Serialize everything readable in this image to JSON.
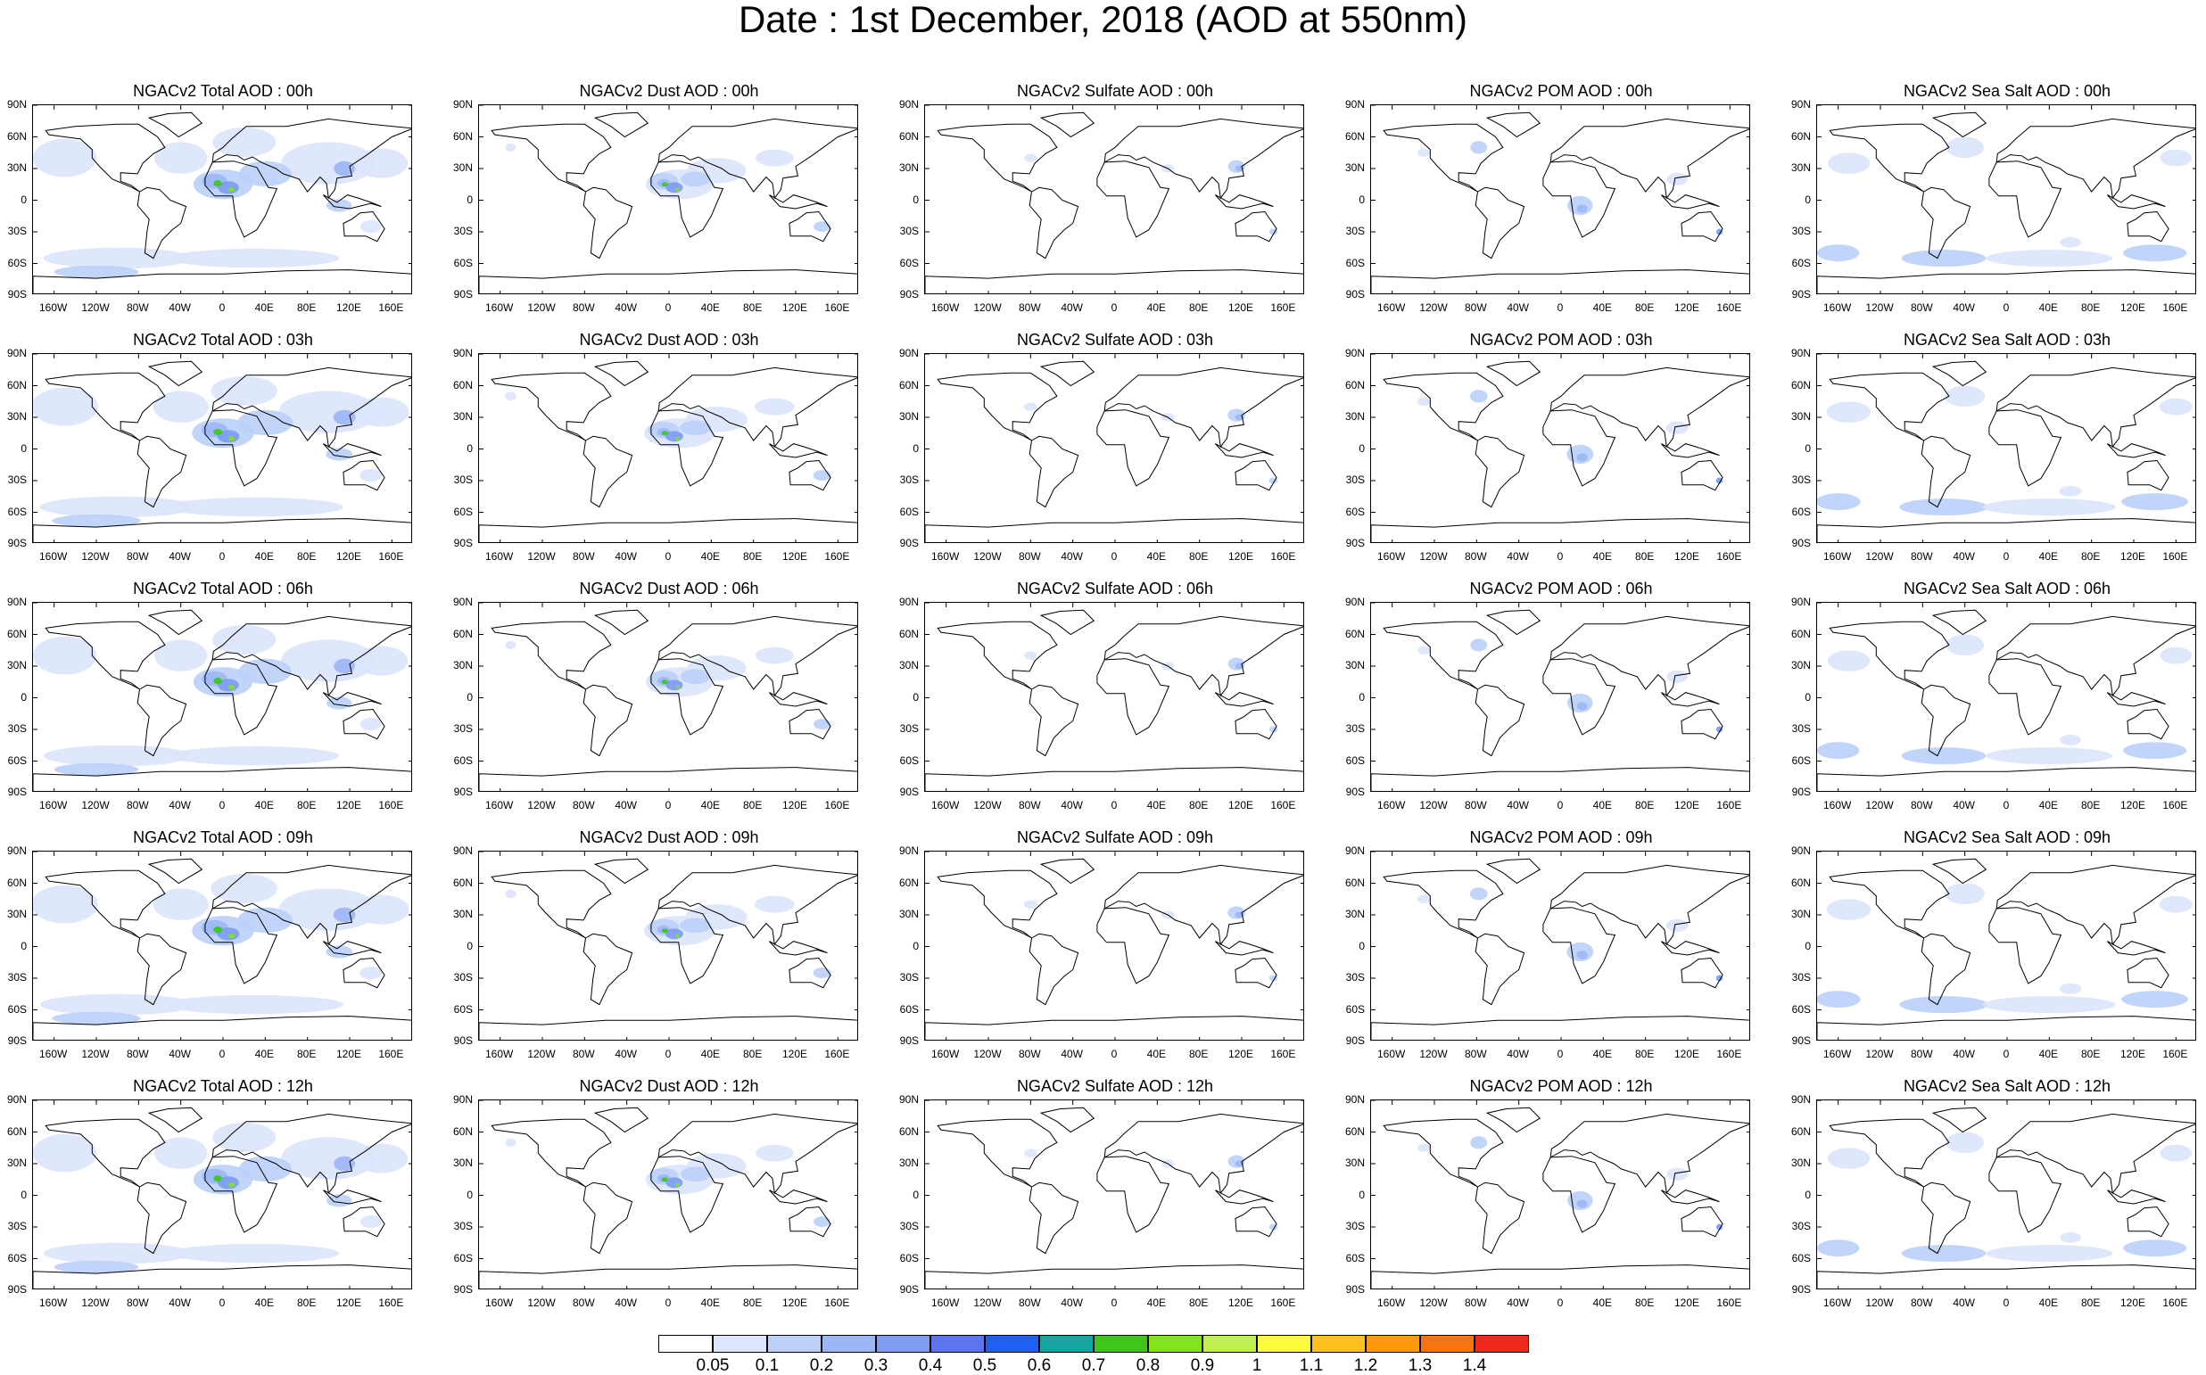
{
  "title": "Date : 1st December, 2018 (AOD at 550nm)",
  "panel_titles": [
    [
      "NGACv2 Total AOD : 00h",
      "NGACv2 Dust AOD : 00h",
      "NGACv2 Sulfate AOD : 00h",
      "NGACv2 POM AOD : 00h",
      "NGACv2 Sea Salt AOD : 00h"
    ],
    [
      "NGACv2 Total AOD : 03h",
      "NGACv2 Dust AOD : 03h",
      "NGACv2 Sulfate AOD : 03h",
      "NGACv2 POM AOD : 03h",
      "NGACv2 Sea Salt AOD : 03h"
    ],
    [
      "NGACv2 Total AOD : 06h",
      "NGACv2 Dust AOD : 06h",
      "NGACv2 Sulfate AOD : 06h",
      "NGACv2 POM AOD : 06h",
      "NGACv2 Sea Salt AOD : 06h"
    ],
    [
      "NGACv2 Total AOD : 09h",
      "NGACv2 Dust AOD : 09h",
      "NGACv2 Sulfate AOD : 09h",
      "NGACv2 POM AOD : 09h",
      "NGACv2 Sea Salt  AOD : 09h"
    ],
    [
      "NGACv2 Total AOD :  12h",
      "NGACv2 Dust AOD : 12h",
      "NGACv2 Sulfate AOD : 12h",
      "NGACv2 POM  AOD : 12h",
      "NGACv2 Sea Salt  AOD : 12h"
    ]
  ],
  "lat_ticks": [
    "90N",
    "60N",
    "30N",
    "0",
    "30S",
    "60S",
    "90S"
  ],
  "lon_ticks": [
    "160W",
    "120W",
    "80W",
    "40W",
    "0",
    "40E",
    "80E",
    "120E",
    "160E"
  ],
  "lat_tick_values": [
    90,
    60,
    30,
    0,
    -30,
    -60,
    -90
  ],
  "lon_tick_values": [
    -160,
    -120,
    -80,
    -40,
    0,
    40,
    80,
    120,
    160
  ],
  "colorbar": {
    "labels": [
      "0.05",
      "0.1",
      "0.2",
      "0.3",
      "0.4",
      "0.5",
      "0.6",
      "0.7",
      "0.8",
      "0.9",
      "1",
      "1.1",
      "1.2",
      "1.3",
      "1.4"
    ],
    "colors": [
      "#ffffff",
      "#dbe5fb",
      "#bcd0f8",
      "#9cb7f5",
      "#7d9cf2",
      "#5c74ee",
      "#1f5ff5",
      "#15a6a1",
      "#3ec61d",
      "#82e51a",
      "#c0f04f",
      "#fefd3c",
      "#fec01a",
      "#fe9a0a",
      "#f97410",
      "#f2281c"
    ]
  },
  "legend_colors": {
    "low": "#dbe5fb",
    "medium": "#bcd0f8",
    "high": "#9cb7f5",
    "very_high": "#7d9cf2",
    "peak": "#5c74ee",
    "dust_core": "#3ec61d",
    "dust_max": "#82e51a"
  }
}
